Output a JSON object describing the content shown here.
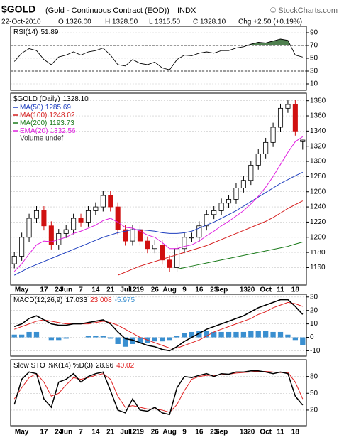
{
  "header": {
    "symbol": "$GOLD",
    "name": "(Gold - Continuous Contract (EOD))",
    "exchange": "INDX",
    "source": "© StockCharts.com",
    "date": "22-Oct-2010",
    "open": "O 1326.00",
    "high": "H 1328.50",
    "low": "L 1315.50",
    "close": "C 1328.10",
    "change": "Chg +2.50 (+0.19%)"
  },
  "chart_data": [
    {
      "type": "rsi",
      "title": "RSI(14)",
      "last": 51.89,
      "color": "#000000",
      "fill_color": "#4f7f4f",
      "overbought": 70,
      "oversold": 30,
      "ylim": [
        0,
        100
      ],
      "yticks": [
        10,
        30,
        50,
        70,
        90
      ],
      "values": [
        45,
        58,
        65,
        62,
        48,
        40,
        52,
        55,
        60,
        55,
        60,
        62,
        66,
        55,
        40,
        38,
        48,
        42,
        40,
        44,
        35,
        32,
        48,
        55,
        54,
        58,
        60,
        58,
        62,
        62,
        66,
        68,
        72,
        75,
        74,
        77,
        80,
        78,
        55,
        51.89
      ]
    },
    {
      "type": "candlestick",
      "title": "$GOLD (Daily)",
      "last": "1328.10",
      "note": "Volume undef",
      "up_color": "#000000",
      "down_color": "#d01010",
      "ylim": [
        1137,
        1390
      ],
      "yticks": [
        1160,
        1180,
        1200,
        1220,
        1240,
        1260,
        1280,
        1300,
        1320,
        1340,
        1360,
        1380
      ],
      "categories": [
        null,
        "May",
        null,
        null,
        "17",
        null,
        "24",
        "Jun",
        null,
        "7",
        null,
        "14",
        null,
        "21",
        null,
        "Jul",
        "12",
        "19",
        null,
        "26",
        null,
        "Aug",
        null,
        "9",
        null,
        "16",
        null,
        "23",
        "Sep",
        null,
        null,
        "13",
        "20",
        null,
        "Oct",
        null,
        "11",
        null,
        "18",
        null
      ],
      "open": [
        1165,
        1175,
        1200,
        1225,
        1235,
        1215,
        1190,
        1205,
        1210,
        1225,
        1220,
        1235,
        1240,
        1255,
        1240,
        1210,
        1195,
        1210,
        1195,
        1185,
        1190,
        1170,
        1160,
        1185,
        1200,
        1200,
        1215,
        1230,
        1235,
        1245,
        1250,
        1265,
        1275,
        1295,
        1310,
        1325,
        1345,
        1370,
        1375,
        1326
      ],
      "high": [
        1181,
        1206,
        1231,
        1241,
        1241,
        1221,
        1211,
        1216,
        1231,
        1231,
        1241,
        1246,
        1261,
        1261,
        1246,
        1216,
        1216,
        1216,
        1201,
        1196,
        1196,
        1176,
        1191,
        1206,
        1206,
        1221,
        1236,
        1241,
        1251,
        1256,
        1271,
        1281,
        1301,
        1316,
        1331,
        1351,
        1376,
        1381,
        1381,
        1328.5
      ],
      "low": [
        1159,
        1169,
        1194,
        1219,
        1209,
        1184,
        1184,
        1199,
        1204,
        1214,
        1214,
        1229,
        1234,
        1234,
        1204,
        1189,
        1189,
        1189,
        1179,
        1179,
        1164,
        1154,
        1154,
        1179,
        1194,
        1194,
        1209,
        1224,
        1229,
        1239,
        1244,
        1259,
        1269,
        1289,
        1304,
        1319,
        1339,
        1364,
        1334,
        1315.5
      ],
      "close": [
        1175,
        1200,
        1225,
        1235,
        1215,
        1190,
        1205,
        1210,
        1225,
        1220,
        1235,
        1240,
        1255,
        1240,
        1210,
        1195,
        1210,
        1195,
        1185,
        1190,
        1170,
        1160,
        1185,
        1200,
        1200,
        1215,
        1230,
        1235,
        1245,
        1250,
        1265,
        1275,
        1295,
        1310,
        1325,
        1345,
        1370,
        1375,
        1340,
        1328.1
      ],
      "series": [
        {
          "name": "MA(50)",
          "color": "#1f3fbf",
          "last": 1285.69,
          "values": [
            1150,
            1155,
            1160,
            1164,
            1168,
            1172,
            1176,
            1180,
            1184,
            1188,
            1192,
            1196,
            1200,
            1203,
            1206,
            1208,
            1210,
            1210,
            1209,
            1208,
            1206,
            1205,
            1205,
            1206,
            1208,
            1212,
            1216,
            1220,
            1225,
            1230,
            1235,
            1241,
            1247,
            1253,
            1259,
            1265,
            1271,
            1276,
            1281,
            1285.69
          ]
        },
        {
          "name": "MA(100)",
          "color": "#d62020",
          "last": 1248.02,
          "values": [
            null,
            null,
            null,
            null,
            null,
            null,
            null,
            null,
            null,
            null,
            null,
            null,
            null,
            null,
            1150,
            1154,
            1158,
            1162,
            1165,
            1168,
            1171,
            1174,
            1177,
            1180,
            1183,
            1186,
            1189,
            1193,
            1197,
            1201,
            1205,
            1209,
            1213,
            1217,
            1221,
            1226,
            1232,
            1238,
            1243,
            1248.02
          ]
        },
        {
          "name": "MA(200)",
          "color": "#1a7a1a",
          "last": 1193.73,
          "values": [
            null,
            null,
            null,
            null,
            null,
            null,
            null,
            null,
            null,
            null,
            null,
            null,
            null,
            null,
            null,
            null,
            null,
            null,
            null,
            null,
            null,
            null,
            1158,
            1160,
            1162,
            1164,
            1166,
            1168,
            1170,
            1172,
            1174,
            1176,
            1178,
            1180,
            1182,
            1184,
            1186,
            1188,
            1191,
            1193.73
          ]
        },
        {
          "name": "EMA(20)",
          "color": "#e020e0",
          "last": 1332.56,
          "values": [
            1155,
            1165,
            1178,
            1190,
            1195,
            1194,
            1197,
            1200,
            1205,
            1208,
            1212,
            1216,
            1222,
            1225,
            1220,
            1213,
            1212,
            1208,
            1203,
            1200,
            1193,
            1185,
            1185,
            1188,
            1190,
            1195,
            1202,
            1208,
            1215,
            1221,
            1228,
            1235,
            1244,
            1254,
            1266,
            1280,
            1296,
            1312,
            1326,
            1332.56
          ]
        }
      ]
    },
    {
      "type": "macd",
      "title": "MACD(12,26,9)",
      "ylim": [
        -14,
        32
      ],
      "yticks": [
        -10,
        0,
        10,
        20,
        30
      ],
      "series": [
        {
          "color": "#000000",
          "last": 17.033,
          "values": [
            8,
            10,
            14,
            16,
            13,
            10,
            9,
            9,
            10,
            10,
            11,
            12,
            13,
            10,
            4,
            -1,
            -2,
            -4,
            -6,
            -7,
            -9,
            -10,
            -7,
            -3,
            0,
            3,
            6,
            8,
            10,
            12,
            14,
            16,
            19,
            22,
            24,
            26,
            28,
            28,
            23,
            17.033
          ]
        },
        {
          "color": "#e02020",
          "last": 23.008,
          "values": [
            6,
            8,
            10,
            12,
            13,
            12,
            11,
            10,
            10,
            10,
            10,
            11,
            12,
            11,
            9,
            6,
            3,
            0,
            -2,
            -4,
            -6,
            -8,
            -8,
            -6,
            -4,
            -2,
            1,
            4,
            6,
            8,
            10,
            12,
            14,
            17,
            19,
            22,
            24,
            26,
            25,
            23.008
          ]
        },
        {
          "color": "#3a8fd0",
          "last": -5.975,
          "values": [
            2,
            2,
            4,
            4,
            0,
            -2,
            -2,
            -1,
            0,
            0,
            1,
            1,
            1,
            -1,
            -5,
            -7,
            -5,
            -4,
            -4,
            -3,
            -3,
            -2,
            1,
            3,
            4,
            5,
            5,
            4,
            4,
            4,
            4,
            4,
            5,
            5,
            5,
            4,
            4,
            2,
            -2,
            -5.975
          ]
        }
      ]
    },
    {
      "type": "line",
      "title": "Slow STO %K(14) %D(3)",
      "ylim": [
        -8,
        110
      ],
      "yticks": [
        20,
        50,
        80
      ],
      "series": [
        {
          "color": "#000000",
          "last": 28.96,
          "values": [
            30,
            75,
            88,
            85,
            40,
            25,
            70,
            75,
            85,
            70,
            80,
            85,
            88,
            55,
            20,
            15,
            40,
            20,
            18,
            25,
            15,
            12,
            60,
            80,
            78,
            82,
            85,
            80,
            85,
            84,
            88,
            88,
            90,
            90,
            88,
            85,
            88,
            85,
            45,
            28.96
          ]
        },
        {
          "color": "#e02020",
          "last": 40.02,
          "values": [
            40,
            60,
            78,
            85,
            70,
            45,
            50,
            65,
            78,
            75,
            78,
            82,
            85,
            75,
            45,
            25,
            28,
            25,
            22,
            22,
            20,
            16,
            30,
            55,
            75,
            80,
            82,
            82,
            83,
            84,
            86,
            87,
            88,
            89,
            89,
            88,
            87,
            87,
            70,
            40.02
          ]
        }
      ]
    }
  ]
}
